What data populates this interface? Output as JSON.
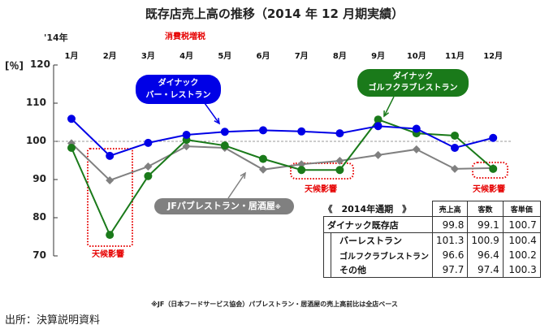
{
  "chart_data": {
    "type": "line",
    "title": "既存店売上高の推移（2014 年 12 月期実績）",
    "year_label": "'14年",
    "annotation_tax": "消費税増税",
    "unit_label": "[％]",
    "categories": [
      "1月",
      "2月",
      "3月",
      "4月",
      "5月",
      "6月",
      "7月",
      "8月",
      "9月",
      "10月",
      "11月",
      "12月"
    ],
    "yticks": [
      120,
      110,
      100,
      90,
      80,
      70
    ],
    "ylim": [
      70,
      120
    ],
    "reference_line": 100,
    "series": [
      {
        "name": "ダイナック バー・レストラン",
        "label_lines": [
          "ダイナック",
          "バー・レストラン"
        ],
        "color": "#0000e6",
        "marker": "circle",
        "values": [
          105.9,
          96.2,
          99.6,
          101.7,
          102.5,
          102.9,
          102.6,
          102.1,
          104.0,
          103.3,
          98.3,
          100.9
        ]
      },
      {
        "name": "ダイナック ゴルフクラブレストラン",
        "label_lines": [
          "ダイナック",
          "ゴルフクラブレストラン"
        ],
        "color": "#1a7a1a",
        "marker": "circle",
        "values": [
          98.3,
          75.5,
          90.9,
          100.4,
          98.9,
          95.4,
          92.5,
          92.5,
          105.7,
          102.1,
          101.5,
          92.8
        ]
      },
      {
        "name": "JFパブレストラン・居酒屋※",
        "label_text": "JFパブレストラン・居酒屋",
        "label_mark": "※",
        "color": "#808080",
        "marker": "diamond",
        "values": [
          99.5,
          89.8,
          93.4,
          98.7,
          98.3,
          92.6,
          94.0,
          94.9,
          96.4,
          97.9,
          92.8,
          93.0
        ]
      }
    ],
    "weather_annotations": [
      {
        "text": "天候影響",
        "months": [
          "2月"
        ]
      },
      {
        "text": "天候影響",
        "months": [
          "7月",
          "8月"
        ]
      },
      {
        "text": "天候影響",
        "months": [
          "12月"
        ]
      }
    ],
    "grid": false
  },
  "table": {
    "title": "《　2014年通期　》",
    "headers": [
      "売上高",
      "客数",
      "客単価"
    ],
    "rows": [
      {
        "label": "ダイナック既存店",
        "values": [
          "99.8",
          "99.1",
          "100.7"
        ]
      },
      {
        "label": "バーレストラン",
        "values": [
          "101.3",
          "100.9",
          "100.4"
        ]
      },
      {
        "label": "ゴルフクラブレストラン",
        "values": [
          "96.6",
          "96.4",
          "100.2"
        ]
      },
      {
        "label": "その他",
        "values": [
          "97.7",
          "97.4",
          "100.3"
        ]
      }
    ]
  },
  "footnote": "※JF（日本フードサービス協会）パブレストラン・居酒屋の売上高前比は全店ベース",
  "source": "出所：決算説明資料"
}
